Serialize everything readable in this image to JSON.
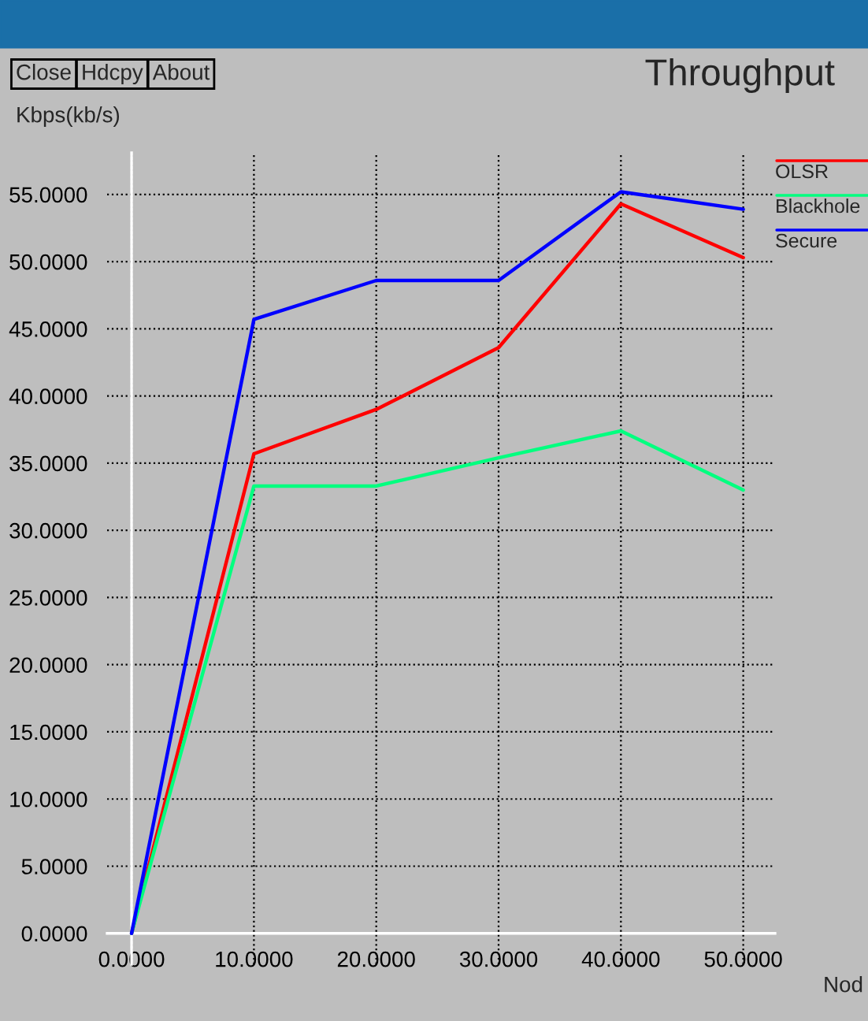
{
  "chart_data": {
    "type": "line",
    "title": "Throughput",
    "ylabel": "Kbps(kb/s)",
    "xlabel": "Nod",
    "annotations": [
      "Close",
      "Hdcpy",
      "About"
    ],
    "x": [
      0,
      10,
      20,
      30,
      40,
      50
    ],
    "series": [
      {
        "name": "OLSR",
        "color": "#ff0000",
        "values": [
          0,
          35.7,
          39.0,
          43.6,
          54.3,
          50.3
        ]
      },
      {
        "name": "Blackhole",
        "color": "#00ff7f",
        "values": [
          0,
          33.3,
          33.3,
          35.4,
          37.4,
          33.0
        ]
      },
      {
        "name": "Secure",
        "color": "#0000ff",
        "values": [
          0,
          45.7,
          48.6,
          48.6,
          55.2,
          53.9
        ]
      }
    ],
    "xlim": [
      -2,
      52.6
    ],
    "ylim": [
      -2.3,
      58.1
    ],
    "xticks": [
      {
        "value": 0,
        "label": "0.0000"
      },
      {
        "value": 10,
        "label": "10.0000"
      },
      {
        "value": 20,
        "label": "20.0000"
      },
      {
        "value": 30,
        "label": "30.0000"
      },
      {
        "value": 40,
        "label": "40.0000"
      },
      {
        "value": 50,
        "label": "50.0000"
      }
    ],
    "yticks": [
      {
        "value": 0,
        "label": "0.0000"
      },
      {
        "value": 5,
        "label": "5.0000"
      },
      {
        "value": 10,
        "label": "10.0000"
      },
      {
        "value": 15,
        "label": "15.0000"
      },
      {
        "value": 20,
        "label": "20.0000"
      },
      {
        "value": 25,
        "label": "25.0000"
      },
      {
        "value": 30,
        "label": "30.0000"
      },
      {
        "value": 35,
        "label": "35.0000"
      },
      {
        "value": 40,
        "label": "40.0000"
      },
      {
        "value": 45,
        "label": "45.0000"
      },
      {
        "value": 50,
        "label": "50.0000"
      },
      {
        "value": 55,
        "label": "55.0000"
      }
    ],
    "grid": true,
    "legend": "top right",
    "marker": "none",
    "line_style": "solid"
  }
}
